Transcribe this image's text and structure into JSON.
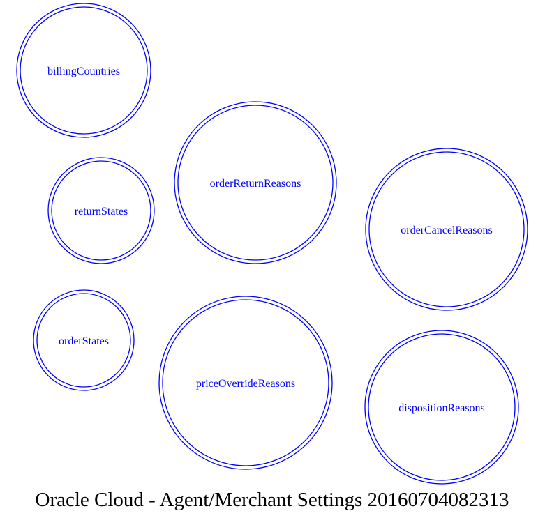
{
  "diagram": {
    "caption": "Oracle Cloud - Agent/Merchant Settings 20160704082313",
    "node_color": "#0000ff",
    "nodes": [
      {
        "label": "billingCountries"
      },
      {
        "label": "returnStates"
      },
      {
        "label": "orderReturnReasons"
      },
      {
        "label": "orderCancelReasons"
      },
      {
        "label": "orderStates"
      },
      {
        "label": "priceOverrideReasons"
      },
      {
        "label": "dispositionReasons"
      }
    ]
  }
}
